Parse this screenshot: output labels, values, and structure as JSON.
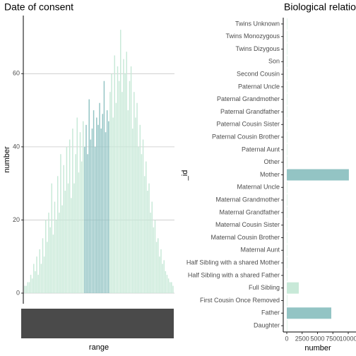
{
  "chart_data": [
    {
      "type": "bar",
      "title": "Date of consent",
      "x_label": "range",
      "y_label": "number",
      "categories": [
        null,
        null,
        null,
        null,
        null,
        null,
        null,
        null,
        null,
        null,
        null,
        null,
        null,
        null,
        null,
        null,
        null,
        null,
        null,
        null,
        null,
        null,
        null,
        null,
        null,
        null,
        null,
        null,
        null,
        null,
        null,
        null,
        null,
        null,
        null,
        null,
        null,
        null,
        null,
        null,
        null,
        null,
        null,
        null,
        null,
        null,
        null,
        null,
        null,
        null,
        null,
        null,
        null,
        null,
        null,
        null,
        null,
        null,
        null,
        null,
        null,
        null,
        null,
        null,
        null,
        null,
        null,
        null,
        null,
        null,
        null,
        null,
        null,
        null,
        null,
        null,
        null,
        null,
        null,
        null,
        null,
        null,
        null,
        null,
        null,
        null,
        null,
        null,
        null,
        null,
        null,
        null,
        null,
        null,
        null,
        null,
        null,
        null,
        null,
        null
      ],
      "values": [
        2,
        2,
        3,
        3,
        5,
        4,
        8,
        6,
        10,
        5,
        12,
        8,
        15,
        10,
        20,
        14,
        22,
        18,
        30,
        16,
        25,
        20,
        32,
        22,
        38,
        24,
        35,
        28,
        40,
        30,
        42,
        26,
        45,
        30,
        38,
        48,
        33,
        44,
        36,
        47,
        40,
        46,
        38,
        53,
        42,
        45,
        50,
        40,
        48,
        46,
        52,
        45,
        49,
        58,
        44,
        50,
        47,
        55,
        60,
        48,
        65,
        52,
        62,
        58,
        72,
        55,
        64,
        60,
        66,
        50,
        58,
        62,
        45,
        55,
        48,
        52,
        40,
        46,
        38,
        42,
        32,
        36,
        28,
        30,
        22,
        25,
        18,
        20,
        14,
        15,
        10,
        12,
        8,
        9,
        6,
        5,
        4,
        3,
        3,
        2
      ],
      "colors": [
        "#c8e9d8",
        "#c8e9d8",
        "#c8e9d8",
        "#c8e9d8",
        "#c8e9d8",
        "#c8e9d8",
        "#c8e9d8",
        "#c8e9d8",
        "#c8e9d8",
        "#c8e9d8",
        "#c8e9d8",
        "#c8e9d8",
        "#c8e9d8",
        "#c8e9d8",
        "#c8e9d8",
        "#c8e9d8",
        "#c8e9d8",
        "#c8e9d8",
        "#c8e9d8",
        "#c8e9d8",
        "#c8e9d8",
        "#c8e9d8",
        "#c8e9d8",
        "#c8e9d8",
        "#c8e9d8",
        "#c8e9d8",
        "#c8e9d8",
        "#c8e9d8",
        "#c8e9d8",
        "#c8e9d8",
        "#c8e9d8",
        "#c8e9d8",
        "#c8e9d8",
        "#c8e9d8",
        "#c8e9d8",
        "#c8e9d8",
        "#c8e9d8",
        "#c8e9d8",
        "#c8e9d8",
        "#c8e9d8",
        "#93c4c4",
        "#93c4c4",
        "#93c4c4",
        "#93c4c4",
        "#93c4c4",
        "#93c4c4",
        "#93c4c4",
        "#93c4c4",
        "#93c4c4",
        "#93c4c4",
        "#93c4c4",
        "#93c4c4",
        "#93c4c4",
        "#93c4c4",
        "#93c4c4",
        "#93c4c4",
        "#93c4c4",
        "#c8e9d8",
        "#c8e9d8",
        "#c8e9d8",
        "#c8e9d8",
        "#c8e9d8",
        "#c8e9d8",
        "#c8e9d8",
        "#c8e9d8",
        "#c8e9d8",
        "#c8e9d8",
        "#c8e9d8",
        "#c8e9d8",
        "#c8e9d8",
        "#c8e9d8",
        "#c8e9d8",
        "#c8e9d8",
        "#c8e9d8",
        "#c8e9d8",
        "#c8e9d8",
        "#c8e9d8",
        "#c8e9d8",
        "#c8e9d8",
        "#c8e9d8",
        "#c8e9d8",
        "#c8e9d8",
        "#c8e9d8",
        "#c8e9d8",
        "#c8e9d8",
        "#c8e9d8",
        "#c8e9d8",
        "#c8e9d8",
        "#c8e9d8",
        "#c8e9d8",
        "#c8e9d8",
        "#c8e9d8",
        "#c8e9d8",
        "#c8e9d8",
        "#c8e9d8",
        "#c8e9d8",
        "#c8e9d8",
        "#c8e9d8",
        "#c8e9d8",
        "#c8e9d8"
      ],
      "ylim": [
        -2.9,
        75.9
      ],
      "yticks": [
        0,
        20,
        40,
        60
      ],
      "grid": true
    },
    {
      "type": "barh",
      "title": "Biological relation",
      "x_label": "number",
      "y_label": "_id",
      "categories": [
        "Daughter",
        "Father",
        "First Cousin Once Removed",
        "Full Sibling",
        "Half Sibling with a shared Father",
        "Half Sibling with a shared Mother",
        "Maternal Aunt",
        "Maternal Cousin Brother",
        "Maternal Cousin Sister",
        "Maternal Grandfather",
        "Maternal Grandmother",
        "Maternal Uncle",
        "Mother",
        "Other",
        "Paternal Aunt",
        "Paternal Cousin Brother",
        "Paternal Cousin Sister",
        "Paternal Grandfather",
        "Paternal Grandmother",
        "Paternal Uncle",
        "Second Cousin",
        "Son",
        "Twins Dizygous",
        "Twins Monozygous",
        "Twins Unknown"
      ],
      "values": [
        50,
        7240,
        10,
        1950,
        20,
        60,
        10,
        5,
        5,
        15,
        80,
        10,
        10100,
        60,
        10,
        5,
        5,
        10,
        15,
        10,
        5,
        70,
        5,
        5,
        5
      ],
      "colors": [
        "#c8e9d8",
        "#93c4c4",
        "#c8e9d8",
        "#c8e9d8",
        "#c8e9d8",
        "#c8e9d8",
        "#c8e9d8",
        "#c8e9d8",
        "#c8e9d8",
        "#c8e9d8",
        "#c8e9d8",
        "#c8e9d8",
        "#93c4c4",
        "#c8e9d8",
        "#c8e9d8",
        "#c8e9d8",
        "#c8e9d8",
        "#c8e9d8",
        "#c8e9d8",
        "#c8e9d8",
        "#c8e9d8",
        "#c8e9d8",
        "#c8e9d8",
        "#c8e9d8",
        "#c8e9d8"
      ],
      "xlim": [
        -575,
        11260
      ],
      "xticks": [
        0,
        2500,
        5000,
        7500,
        10000
      ],
      "grid": false
    }
  ]
}
